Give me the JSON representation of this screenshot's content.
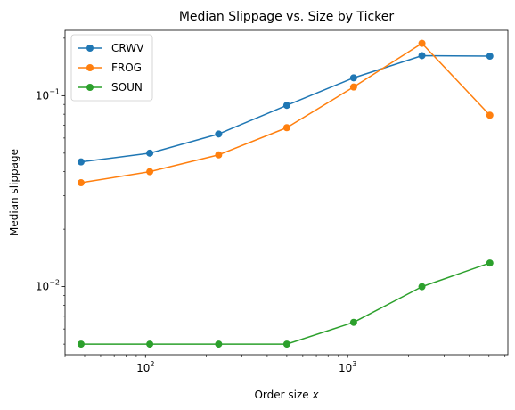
{
  "chart_data": {
    "type": "line",
    "title": "Median Slippage vs. Size by Ticker",
    "xlabel": "Order size x",
    "ylabel": "Median slippage",
    "xscale": "log",
    "yscale": "log",
    "xlim": [
      40,
      6200
    ],
    "ylim": [
      0.0044,
      0.22
    ],
    "xticks": [
      {
        "value": 100,
        "base": "10",
        "exp": "2"
      },
      {
        "value": 1000,
        "base": "10",
        "exp": "3"
      }
    ],
    "yticks": [
      {
        "value": 0.01,
        "base": "10",
        "exp": "−2"
      },
      {
        "value": 0.1,
        "base": "10",
        "exp": "−1"
      }
    ],
    "legend_position": "top-left",
    "x": [
      48,
      105,
      230,
      500,
      1070,
      2330,
      5050
    ],
    "series": [
      {
        "name": "CRWV",
        "color": "#1f77b4",
        "values": [
          0.045,
          0.05,
          0.063,
          0.089,
          0.124,
          0.162,
          0.161
        ]
      },
      {
        "name": "FROG",
        "color": "#ff7f0e",
        "values": [
          0.035,
          0.04,
          0.049,
          0.068,
          0.111,
          0.188,
          0.079
        ]
      },
      {
        "name": "SOUN",
        "color": "#2ca02c",
        "values": [
          0.005,
          0.005,
          0.005,
          0.005,
          0.0065,
          0.01,
          0.0133
        ]
      }
    ]
  }
}
